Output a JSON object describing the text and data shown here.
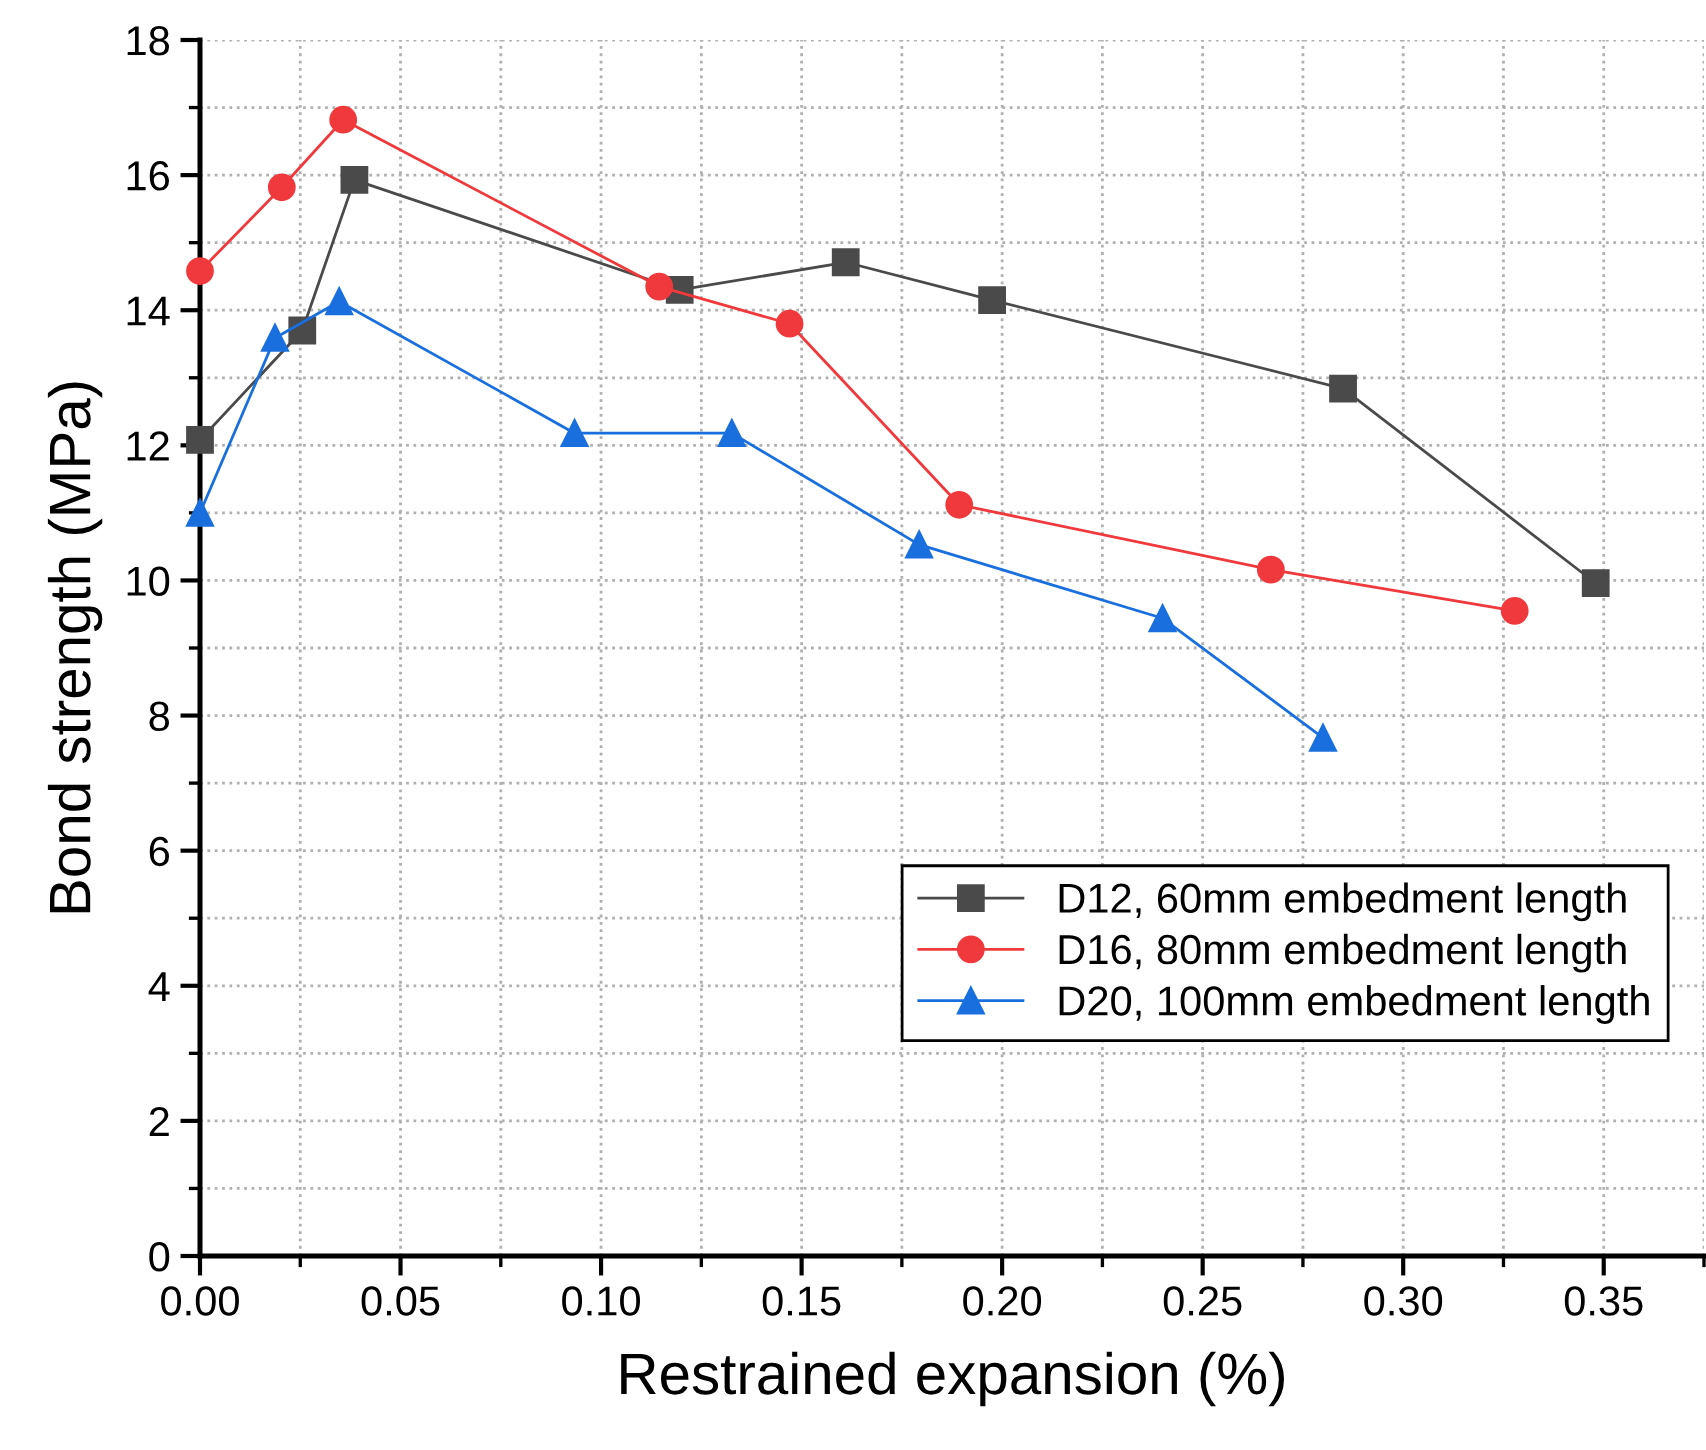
{
  "chart_data": {
    "type": "line",
    "xlabel": "Restrained expansion (%)",
    "ylabel": "Bond strength (MPa)",
    "xlim": [
      0,
      0.375
    ],
    "xticks": [
      {
        "value": 0,
        "label": "0.00"
      },
      0.05,
      {
        "value": 0.1,
        "label": "0.10"
      },
      0.15,
      {
        "value": 0.2,
        "label": "0.20"
      },
      0.25,
      {
        "value": 0.3,
        "label": "0.30"
      },
      0.35
    ],
    "ylim": [
      0,
      18
    ],
    "yticks": [
      0,
      2,
      4,
      6,
      8,
      10,
      12,
      14,
      16,
      18
    ],
    "grid": true,
    "legend": "lower right",
    "series": [
      {
        "name": "D12, 60mm embedment length",
        "color": "#4a4a4a",
        "marker": "square",
        "x": [
          0,
          0.0255,
          0.0385,
          0.1196,
          0.161,
          0.1975,
          0.285,
          0.348
        ],
        "values": [
          12.08,
          13.7,
          15.93,
          14.3,
          14.71,
          14.15,
          12.84,
          9.96
        ]
      },
      {
        "name": "D16, 80mm embedment length",
        "color": "#f0393c",
        "marker": "circle",
        "x": [
          0,
          0.0204,
          0.0357,
          0.1145,
          0.147,
          0.1893,
          0.267,
          0.3278
        ],
        "values": [
          14.58,
          15.82,
          16.82,
          14.35,
          13.8,
          11.12,
          10.16,
          9.55
        ]
      },
      {
        "name": "D20, 100mm embedment length",
        "color": "#1a6fdf",
        "marker": "triangle",
        "x": [
          0,
          0.0187,
          0.0347,
          0.0934,
          0.1326,
          0.1793,
          0.24,
          0.28
        ],
        "values": [
          11.0,
          13.59,
          14.13,
          12.18,
          12.18,
          10.53,
          9.44,
          7.67
        ]
      }
    ]
  }
}
